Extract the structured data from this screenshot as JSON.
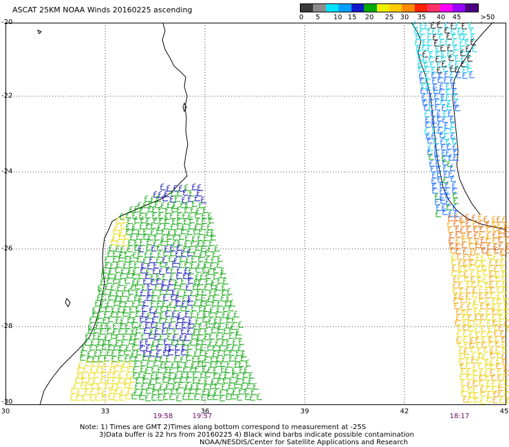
{
  "title": "ASCAT 25KM NOAA Winds 20160225 ascending",
  "legend": {
    "labels": [
      "0",
      "5",
      "10",
      "15",
      "20",
      "25",
      "30",
      "35",
      "40",
      "45",
      ">50 knots"
    ],
    "colors": [
      "#3a3a3a",
      "#8c8c8c",
      "#00e5ff",
      "#00a0ff",
      "#1018c8",
      "#00aa00",
      "#f0f000",
      "#ffcc00",
      "#ff8c00",
      "#ff2200",
      "#ff3366",
      "#ff00ff",
      "#9900ff",
      "#4b0082"
    ]
  },
  "axes": {
    "lat_labels": [
      "-20",
      "-22",
      "-24",
      "-26",
      "-28",
      "-30"
    ],
    "lon_labels": [
      "30",
      "33",
      "36",
      "39",
      "42",
      "45"
    ]
  },
  "pass_times": [
    {
      "text": "19:58"
    },
    {
      "text": "19:57"
    },
    {
      "text": "18:17"
    }
  ],
  "notes": {
    "line1": "Note: 1) Times are GMT 2)Times along bottom correspond to measurement at -25S",
    "line2": "3)Data buffer is 22 hrs from 20160225 4) Black wind barbs indicate possible contamination",
    "line3": "NOAA/NESDIS/Center for Satellite Applications and Research"
  },
  "colors": {
    "speed_5_10": "#00d0e0",
    "speed_10_15": "#0060ff",
    "speed_15_20": "#0000b0",
    "speed_20_25": "#00a000",
    "speed_25_30": "#e8d800",
    "speed_30_35": "#f0a000",
    "speed_35_40": "#e06000",
    "contaminated": "#000000",
    "coastline": "#000000",
    "grid": "#000000"
  }
}
